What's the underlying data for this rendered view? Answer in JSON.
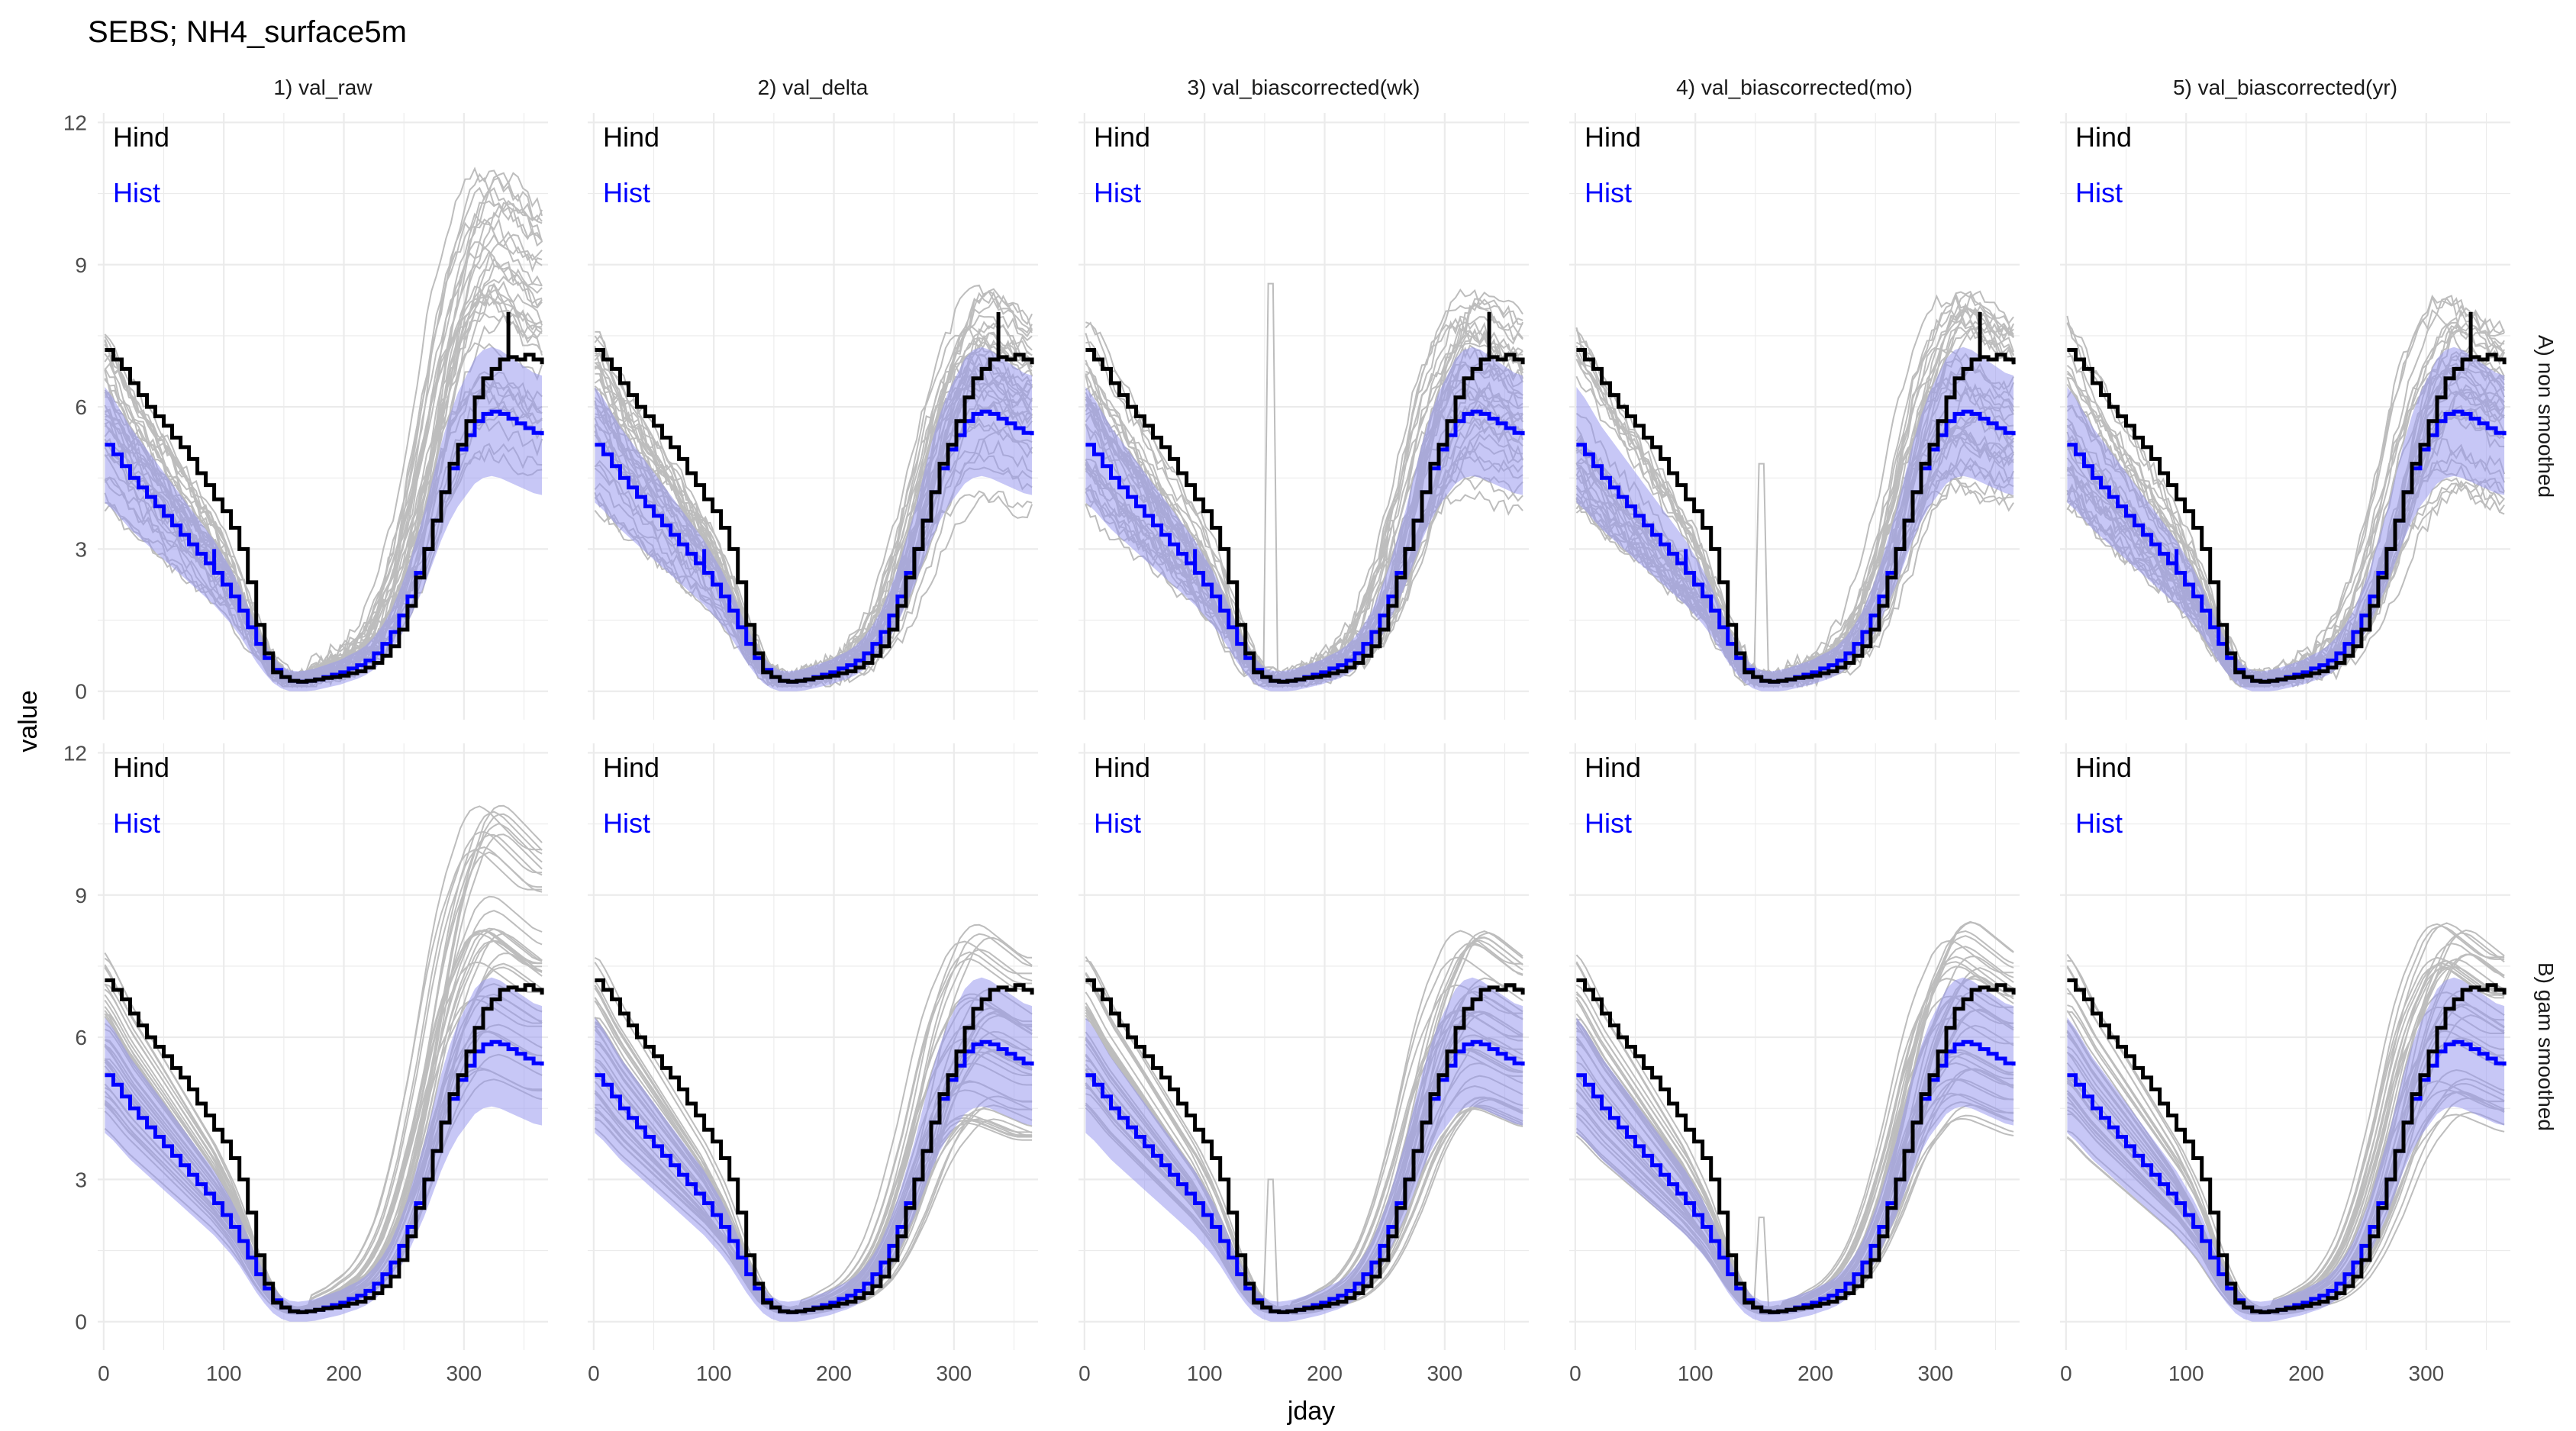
{
  "figure": {
    "title": "SEBS; NH4_surface5m",
    "xlabel": "jday",
    "ylabel": "value"
  },
  "colors": {
    "hind": "#000000",
    "hist": "#0000ff",
    "band": "#9999ee",
    "ensemble": "#bdbdbd",
    "grid": "#ebebeb",
    "text": "#4d4d4d"
  },
  "chart_data": {
    "type": "line",
    "facet_columns": [
      "1) val_raw",
      "2) val_delta",
      "3) val_biascorrected(wk)",
      "4) val_biascorrected(mo)",
      "5) val_biascorrected(yr)"
    ],
    "facet_rows": [
      "A) non smoothed",
      "B) gam smoothed"
    ],
    "annotations": [
      "Hind",
      "Hist"
    ],
    "xlim": [
      -5,
      370
    ],
    "ylim": [
      -0.6,
      12.2
    ],
    "x_ticks": [
      0,
      100,
      200,
      300
    ],
    "y_ticks": [
      0,
      3,
      6,
      9,
      12
    ],
    "grid": true,
    "series": [
      {
        "name": "Hind",
        "style": "step",
        "x": [
          1,
          8,
          15,
          22,
          29,
          36,
          43,
          50,
          57,
          64,
          71,
          78,
          85,
          92,
          99,
          106,
          113,
          120,
          127,
          134,
          141,
          148,
          155,
          162,
          169,
          176,
          183,
          190,
          197,
          204,
          211,
          218,
          225,
          232,
          239,
          246,
          253,
          260,
          267,
          274,
          281,
          288,
          295,
          302,
          309,
          316,
          323,
          330,
          337,
          344,
          351,
          358,
          365
        ],
        "values": [
          7.2,
          7.0,
          6.8,
          6.5,
          6.25,
          6.0,
          5.8,
          5.6,
          5.35,
          5.15,
          4.9,
          4.6,
          4.35,
          4.05,
          3.8,
          3.45,
          3.0,
          2.3,
          1.4,
          0.8,
          0.4,
          0.3,
          0.22,
          0.2,
          0.22,
          0.25,
          0.28,
          0.3,
          0.33,
          0.38,
          0.42,
          0.5,
          0.6,
          0.75,
          0.95,
          1.3,
          1.8,
          2.4,
          3.0,
          3.6,
          4.2,
          4.8,
          5.2,
          5.7,
          6.2,
          6.6,
          6.8,
          7.0,
          7.05,
          7.0,
          7.1,
          7.0,
          6.9
        ]
      },
      {
        "name": "Hist",
        "style": "step",
        "x": [
          1,
          8,
          15,
          22,
          29,
          36,
          43,
          50,
          57,
          64,
          71,
          78,
          85,
          92,
          99,
          106,
          113,
          120,
          127,
          134,
          141,
          148,
          155,
          162,
          169,
          176,
          183,
          190,
          197,
          204,
          211,
          218,
          225,
          232,
          239,
          246,
          253,
          260,
          267,
          274,
          281,
          288,
          295,
          302,
          309,
          316,
          323,
          330,
          337,
          344,
          351,
          358,
          365
        ],
        "values": [
          5.2,
          5.0,
          4.75,
          4.5,
          4.3,
          4.1,
          3.9,
          3.7,
          3.5,
          3.3,
          3.1,
          2.9,
          2.7,
          2.5,
          2.25,
          2.0,
          1.7,
          1.35,
          1.0,
          0.7,
          0.45,
          0.3,
          0.22,
          0.2,
          0.22,
          0.25,
          0.3,
          0.35,
          0.4,
          0.48,
          0.55,
          0.65,
          0.8,
          1.0,
          1.25,
          1.6,
          2.0,
          2.5,
          3.0,
          3.6,
          4.2,
          4.7,
          5.1,
          5.4,
          5.7,
          5.85,
          5.9,
          5.85,
          5.75,
          5.65,
          5.55,
          5.45,
          5.4
        ]
      }
    ]
  }
}
